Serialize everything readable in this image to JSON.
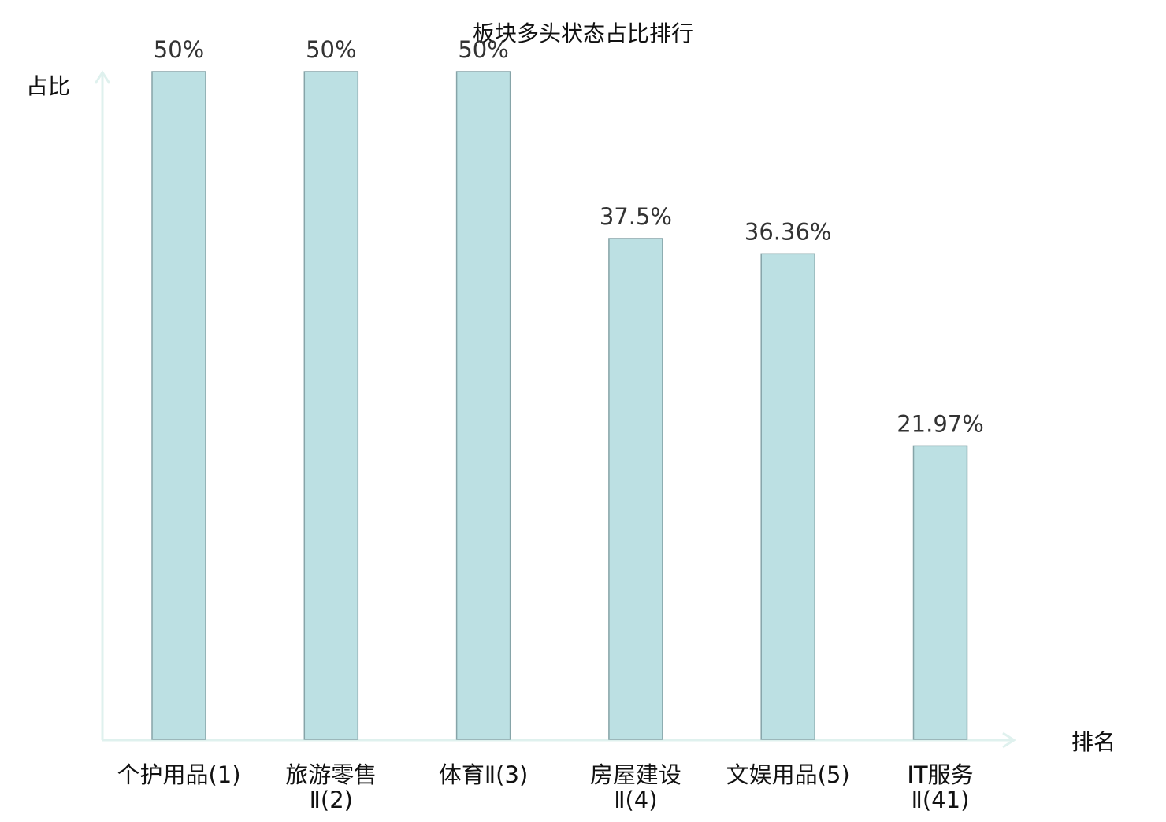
{
  "chart_data": {
    "type": "bar",
    "title": "板块多头状态占比排行",
    "ylabel": "占比",
    "xlabel": "排名",
    "categories": [
      [
        "个护用品(1)"
      ],
      [
        "旅游零售",
        "Ⅱ(2)"
      ],
      [
        "体育Ⅱ(3)"
      ],
      [
        "房屋建设",
        "Ⅱ(4)"
      ],
      [
        "文娱用品(5)"
      ],
      [
        "IT服务",
        "Ⅱ(41)"
      ]
    ],
    "values": [
      50,
      50,
      50,
      37.5,
      36.36,
      21.97
    ],
    "value_labels": [
      "50%",
      "50%",
      "50%",
      "37.5%",
      "36.36%",
      "21.97%"
    ],
    "highlight_index": 5,
    "ylim": [
      0,
      50
    ],
    "grid": false,
    "colors": {
      "bar_fill": "#bce0e3",
      "bar_stroke": "#86a4a8",
      "axis": "#dff1ee",
      "highlight_label": "#e8171b",
      "label": "#111111",
      "value_label": "#333333"
    }
  }
}
